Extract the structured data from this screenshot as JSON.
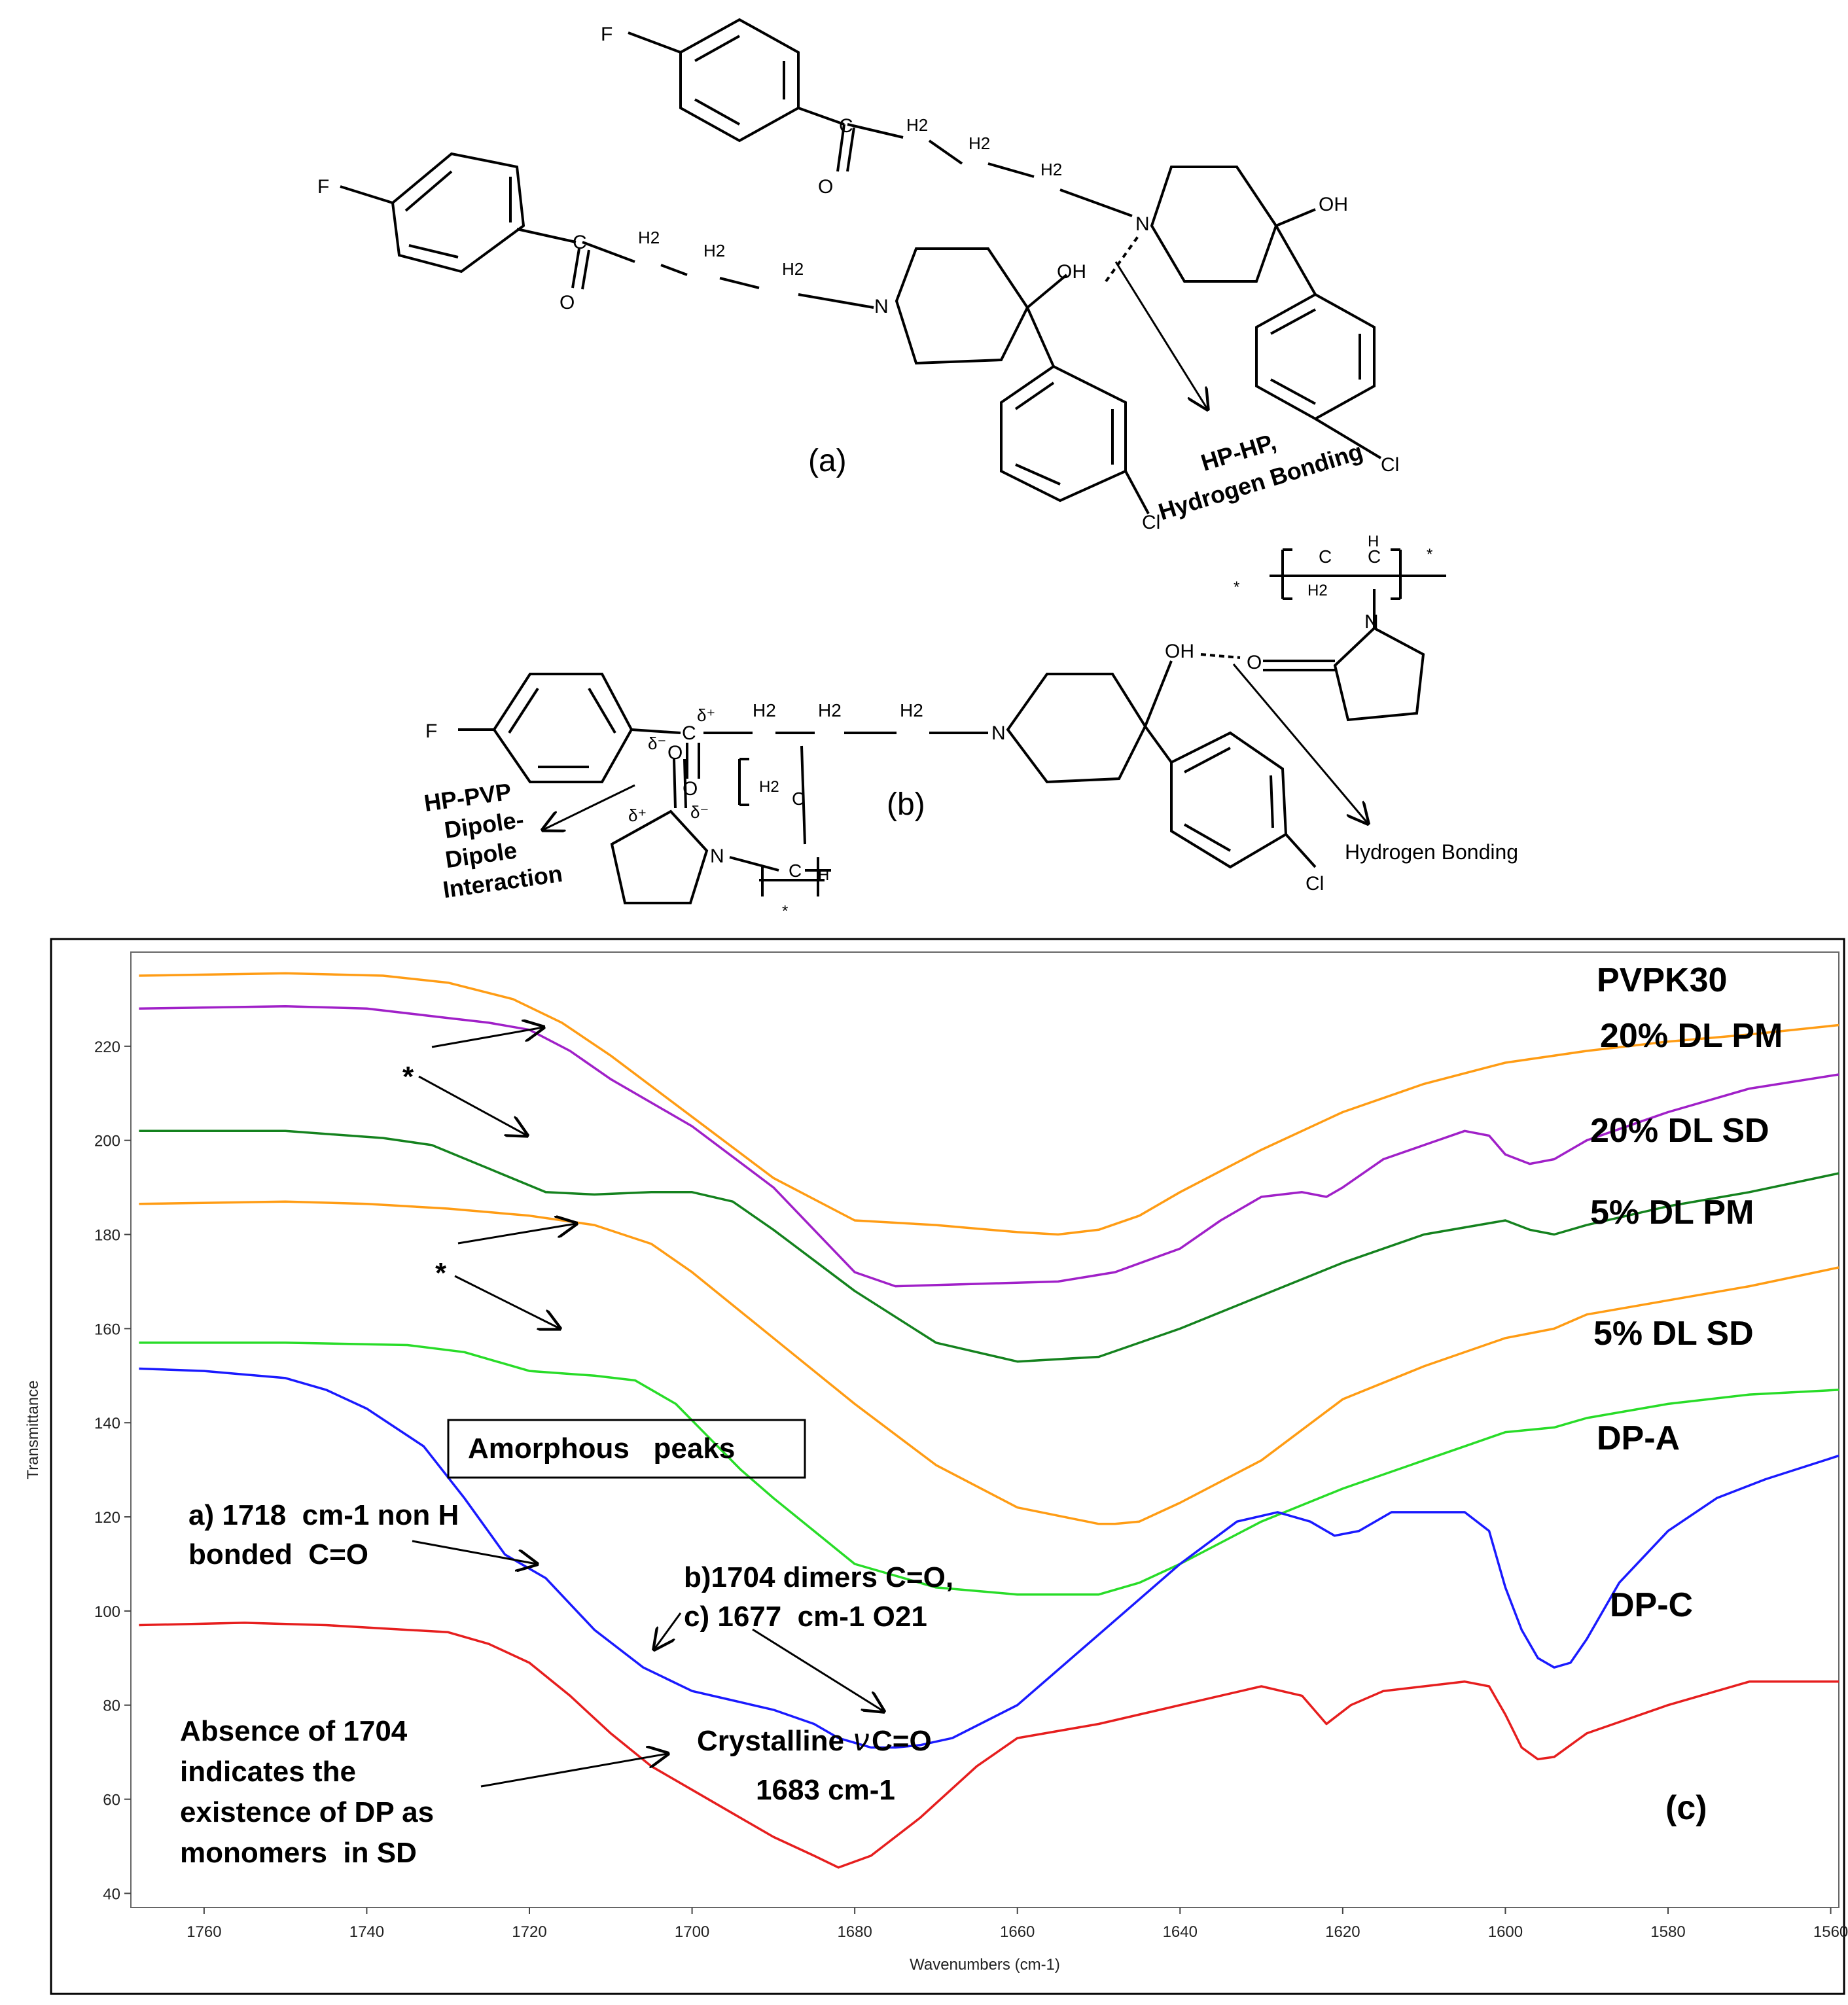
{
  "scheme_a": {
    "upper_molecule": {
      "F": "F",
      "C": "C",
      "O": "O",
      "H2_1": "H2",
      "H2_2": "H2",
      "H2_3": "H2",
      "N": "N",
      "OH": "OH",
      "Cl": "Cl"
    },
    "lower_molecule": {
      "F": "F",
      "C": "C",
      "O": "O",
      "H2_1": "H2",
      "H2_2": "H2",
      "H2_3": "H2",
      "N": "N",
      "OH": "OH",
      "Cl": "Cl"
    },
    "label": "(a)",
    "interaction_line1": "HP-HP,",
    "interaction_line2": "Hydrogen Bonding"
  },
  "scheme_b": {
    "F": "F",
    "C": "C",
    "O": "O",
    "N": "N",
    "OH": "OH",
    "Cl": "Cl",
    "H2_1": "H2",
    "H2_2": "H2",
    "H2_3": "H2",
    "delta_plus": "δ⁺",
    "delta_minus": "δ⁻",
    "pvp_top": {
      "O": "O",
      "N": "N",
      "C1": "C",
      "C2": "C",
      "H2": "H2",
      "H": "H",
      "star": "*"
    },
    "pvp_bottom": {
      "O": "O",
      "N": "N",
      "C1": "C",
      "C2": "C",
      "H2": "H2",
      "H": "H",
      "star": "*"
    },
    "label": "(b)",
    "dipole_line1": "HP-PVP",
    "dipole_line2": "Dipole-",
    "dipole_line3": "Dipole",
    "dipole_line4": "Interaction",
    "hbond_label": "Hydrogen Bonding"
  },
  "chart_data": {
    "type": "line",
    "panel_label": "(c)",
    "xlabel": "Wavenumbers (cm-1)",
    "ylabel": "Transmittance",
    "xlim": [
      1769,
      1559
    ],
    "ylim": [
      37,
      240
    ],
    "xticks": [
      1760,
      1740,
      1720,
      1700,
      1680,
      1660,
      1640,
      1620,
      1600,
      1580,
      1560
    ],
    "yticks": [
      40,
      60,
      80,
      100,
      120,
      140,
      160,
      180,
      200,
      220
    ],
    "series": [
      {
        "name": "PVPK30",
        "color": "#ff9c14",
        "x": [
          1768,
          1750,
          1738,
          1730,
          1722,
          1716,
          1710,
          1700,
          1690,
          1680,
          1670,
          1660,
          1655,
          1650,
          1645,
          1640,
          1630,
          1620,
          1610,
          1600,
          1590,
          1580,
          1570,
          1559
        ],
        "y": [
          235,
          235.5,
          235,
          233.5,
          230,
          225,
          218,
          205,
          192,
          183,
          182,
          180.5,
          180,
          181,
          184,
          189,
          198,
          206,
          212,
          216.5,
          219,
          221,
          222.5,
          224.5
        ]
      },
      {
        "name": "20% DL PM",
        "color": "#a020c8",
        "x": [
          1768,
          1750,
          1740,
          1730,
          1725,
          1720,
          1715,
          1710,
          1700,
          1690,
          1680,
          1675,
          1665,
          1655,
          1648,
          1640,
          1635,
          1630,
          1625,
          1622,
          1620,
          1615,
          1610,
          1605,
          1602,
          1600,
          1597,
          1594,
          1590,
          1580,
          1570,
          1559
        ],
        "y": [
          228,
          228.5,
          228,
          226,
          225,
          223.5,
          219,
          213,
          203,
          190,
          172,
          169,
          169.5,
          170,
          172,
          177,
          183,
          188,
          189,
          188,
          190,
          196,
          199,
          202,
          201,
          197,
          195,
          196,
          200,
          206,
          211,
          214
        ]
      },
      {
        "name": "20% DL SD",
        "color": "#14821e",
        "x": [
          1768,
          1750,
          1738,
          1732,
          1725,
          1718,
          1712,
          1705,
          1700,
          1695,
          1690,
          1680,
          1670,
          1660,
          1650,
          1640,
          1630,
          1620,
          1610,
          1600,
          1597,
          1594,
          1590,
          1580,
          1570,
          1559
        ],
        "y": [
          202,
          202,
          200.5,
          199,
          194,
          189,
          188.5,
          189,
          189,
          187,
          181,
          168,
          157,
          153,
          154,
          160,
          167,
          174,
          180,
          183,
          181,
          180,
          182,
          186,
          189,
          193
        ]
      },
      {
        "name": "5% DL PM",
        "color": "#ff9c14",
        "x": [
          1768,
          1750,
          1740,
          1730,
          1720,
          1712,
          1705,
          1700,
          1690,
          1680,
          1670,
          1660,
          1650,
          1648,
          1645,
          1640,
          1630,
          1620,
          1610,
          1600,
          1597,
          1594,
          1590,
          1580,
          1570,
          1559
        ],
        "y": [
          186.5,
          187,
          186.5,
          185.5,
          184,
          182,
          178,
          172,
          158,
          144,
          131,
          122,
          118.5,
          118.5,
          119,
          123,
          132,
          145,
          152,
          158,
          159,
          160,
          163,
          166,
          169,
          173
        ]
      },
      {
        "name": "5% DL SD",
        "color": "#28dc28",
        "x": [
          1768,
          1750,
          1735,
          1728,
          1720,
          1712,
          1707,
          1702,
          1698,
          1694,
          1690,
          1685,
          1680,
          1670,
          1660,
          1655,
          1650,
          1645,
          1640,
          1630,
          1620,
          1610,
          1605,
          1600,
          1597,
          1594,
          1590,
          1580,
          1570,
          1559
        ],
        "y": [
          157,
          157,
          156.5,
          155,
          151,
          150,
          149,
          144,
          137,
          130,
          124,
          117,
          110,
          105,
          103.5,
          103.5,
          103.5,
          106,
          110,
          119,
          126,
          132,
          135,
          138,
          138.5,
          139,
          141,
          144,
          146,
          147
        ]
      },
      {
        "name": "DP-A",
        "color": "#1a1aff",
        "x": [
          1768,
          1760,
          1750,
          1745,
          1740,
          1733,
          1728,
          1723,
          1718,
          1712,
          1706,
          1700,
          1695,
          1690,
          1685,
          1682,
          1678,
          1675,
          1672,
          1668,
          1660,
          1650,
          1640,
          1633,
          1628,
          1624,
          1621,
          1618,
          1614,
          1610,
          1605,
          1602,
          1600,
          1598,
          1596,
          1594,
          1592,
          1590,
          1586,
          1580,
          1574,
          1568,
          1559
        ],
        "y": [
          151.5,
          151,
          149.5,
          147,
          143,
          135,
          124,
          112,
          107,
          96,
          88,
          83,
          81,
          79,
          76,
          73,
          71,
          71,
          71.5,
          73,
          80,
          95,
          110,
          119,
          121,
          119,
          116,
          117,
          121,
          121,
          121,
          117,
          105,
          96,
          90,
          88,
          89,
          94,
          106,
          117,
          124,
          128,
          133
        ]
      },
      {
        "name": "DP-C",
        "color": "#e61e1e",
        "x": [
          1768,
          1755,
          1745,
          1740,
          1735,
          1730,
          1725,
          1720,
          1715,
          1710,
          1705,
          1700,
          1695,
          1690,
          1685,
          1682,
          1678,
          1672,
          1665,
          1660,
          1650,
          1640,
          1630,
          1625,
          1622,
          1619,
          1615,
          1610,
          1605,
          1602,
          1600,
          1598,
          1596,
          1594,
          1590,
          1580,
          1570,
          1559
        ],
        "y": [
          97,
          97.5,
          97,
          96.5,
          96,
          95.5,
          93,
          89,
          82,
          74,
          67,
          62,
          57,
          52,
          48,
          45.5,
          48,
          56,
          67,
          73,
          76,
          80,
          84,
          82,
          76,
          80,
          83,
          84,
          85,
          84,
          78,
          71,
          68.5,
          69,
          74,
          80,
          85,
          85
        ]
      }
    ],
    "series_labels": [
      "PVPK30",
      "20% DL PM",
      "20% DL SD",
      "5% DL PM",
      "5% DL SD",
      "DP-A",
      "DP-C"
    ],
    "annotations": {
      "star": "*",
      "amorphous": "Amorphous   peaks",
      "a_line1": "a) 1718  cm-1 non H",
      "a_line2": "bonded  C=O",
      "b_line1": "b)1704 dimers C=O,",
      "b_line2": "c) 1677  cm-1 O21",
      "crystalline_prefix": "Crystalline",
      "crystalline_nu": "ν",
      "crystalline_suffix": "C=O",
      "crystalline_value": "1683 cm-1",
      "absence_lines": [
        "Absence of 1704",
        "indicates the",
        "existence of DP as",
        "monomers  in SD"
      ]
    }
  }
}
